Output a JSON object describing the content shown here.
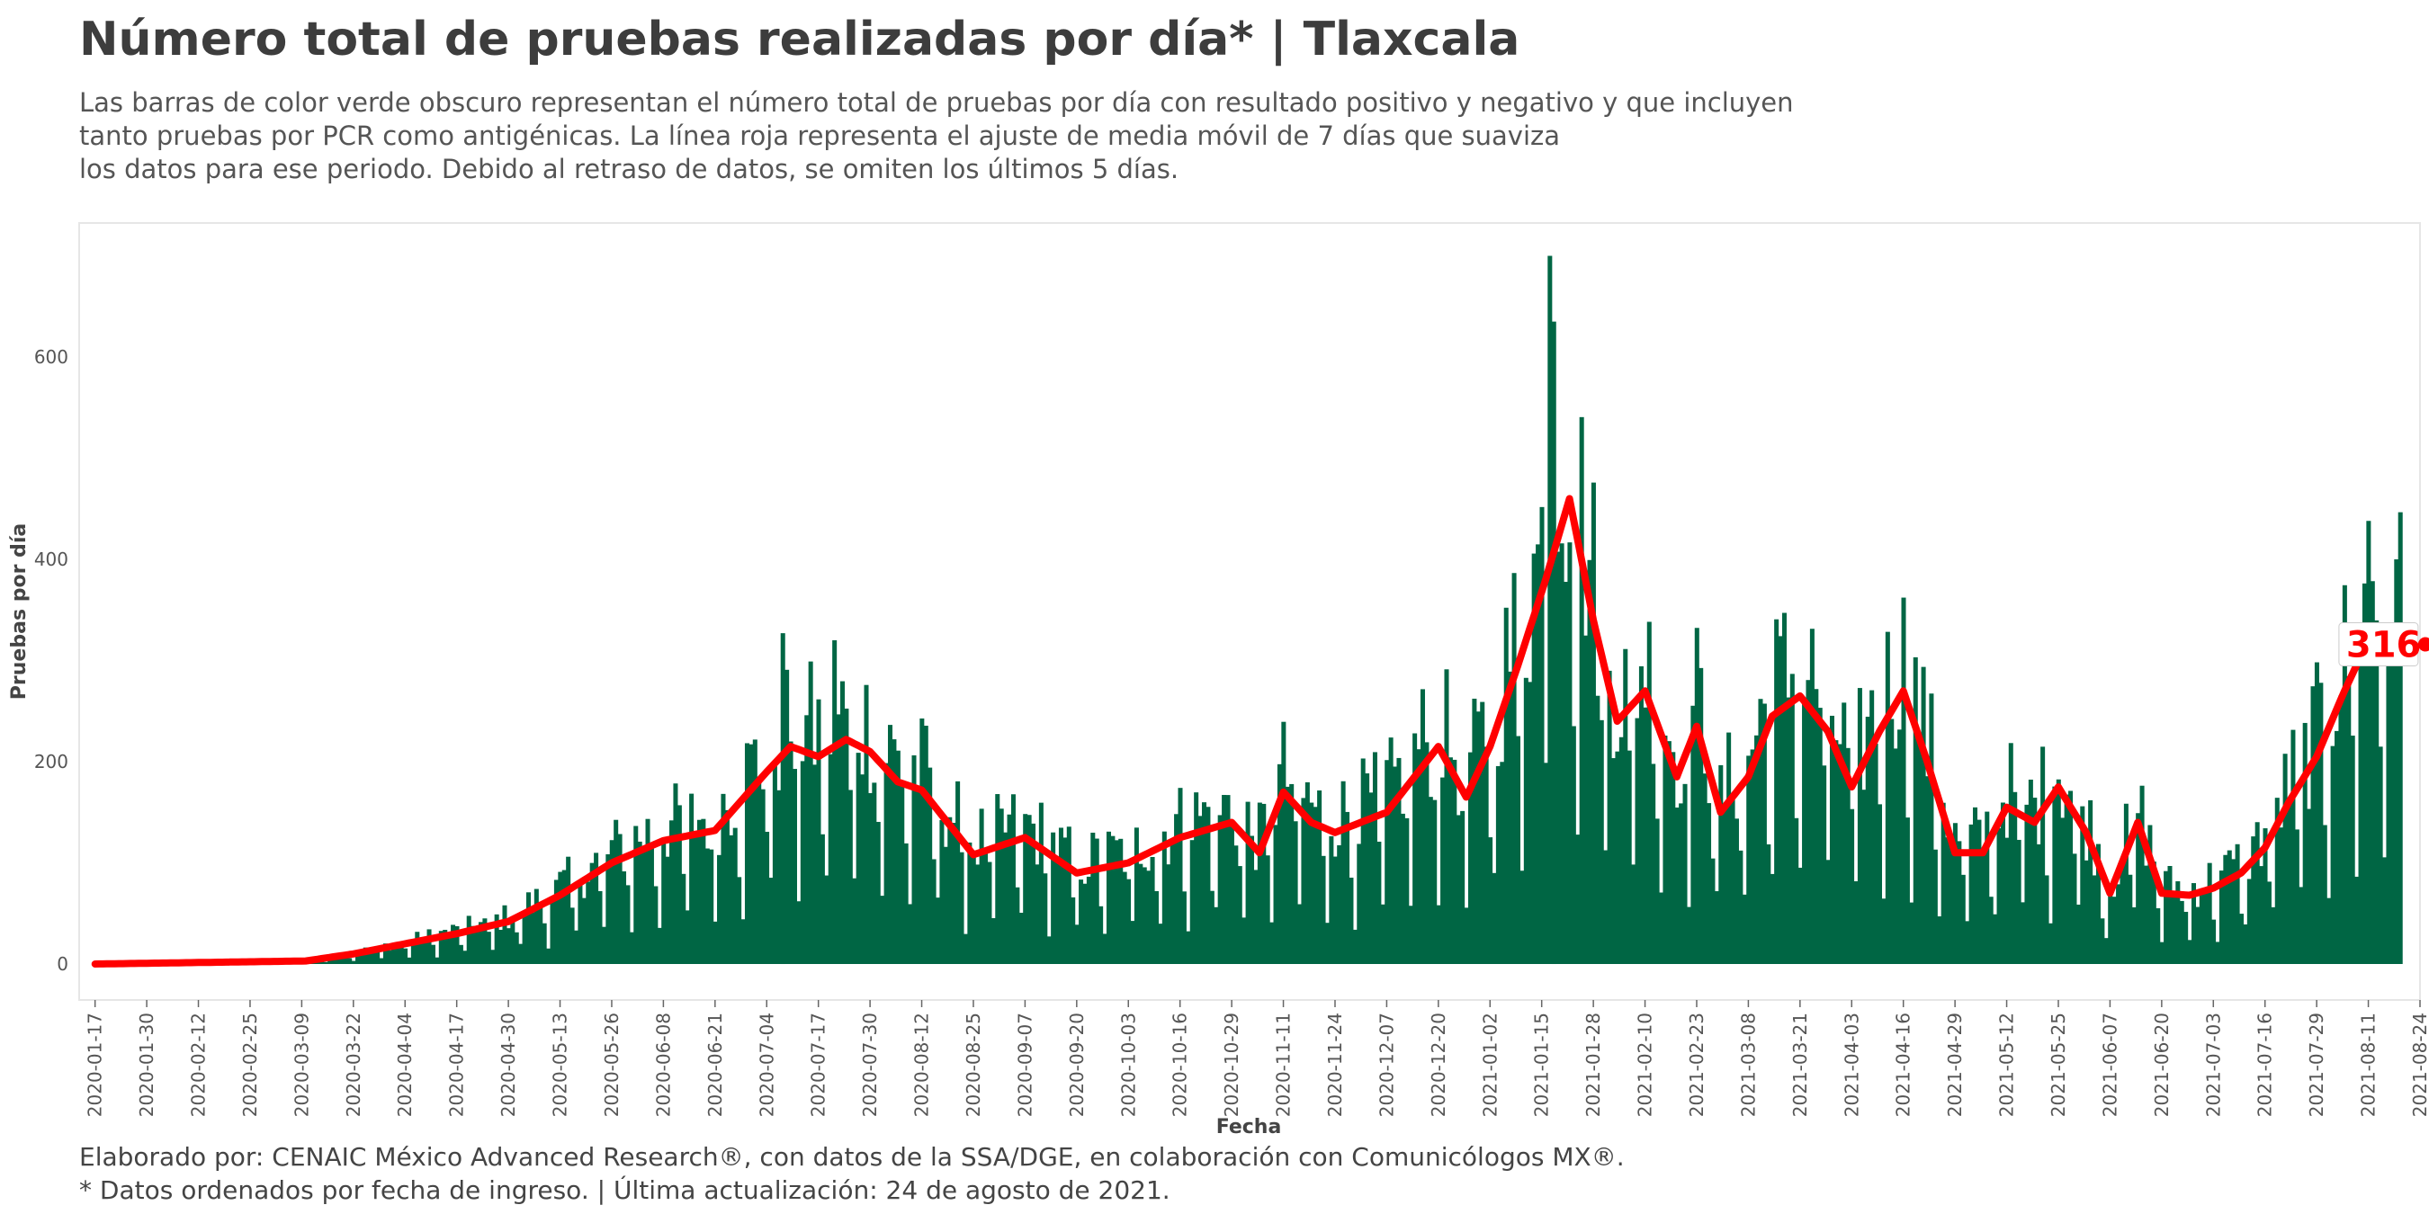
{
  "header": {
    "title": "Número total de pruebas realizadas por día* | Tlaxcala",
    "subtitle_lines": [
      "Las barras de color verde obscuro representan el número total de pruebas por día con resultado positivo y negativo y que incluyen",
      "tanto pruebas por PCR como antigénicas. La línea roja representa el ajuste de media móvil de 7 días que suaviza",
      "los datos para ese periodo. Debido al retraso de datos, se omiten los últimos 5 días."
    ]
  },
  "footer": {
    "lines": [
      "Elaborado por: CENAIC México Advanced Research®, con datos de la SSA/DGE, en colaboración con Comunicólogos MX®.",
      "* Datos ordenados por fecha de ingreso. | Última actualización: 24 de agosto de 2021."
    ]
  },
  "colors": {
    "bars": "#006644",
    "line": "#ff0000",
    "panel_border": "#e6e6e6"
  },
  "chart_data": {
    "type": "bar",
    "xlabel": "Fecha",
    "ylabel": "Pruebas por día",
    "x_start": "2020-01-17",
    "x_end": "2021-08-19",
    "x_axis_limits": [
      "2020-01-13",
      "2021-08-24"
    ],
    "xlim": [
      "2020-01-13",
      "2021-08-24"
    ],
    "ylim": [
      0,
      720
    ],
    "y_ticks": [
      0,
      200,
      400,
      600
    ],
    "x_ticks": [
      "2020-01-17",
      "2020-01-30",
      "2020-02-12",
      "2020-02-25",
      "2020-03-09",
      "2020-03-22",
      "2020-04-04",
      "2020-04-17",
      "2020-04-30",
      "2020-05-13",
      "2020-05-26",
      "2020-06-08",
      "2020-06-21",
      "2020-07-04",
      "2020-07-17",
      "2020-07-30",
      "2020-08-12",
      "2020-08-25",
      "2020-09-07",
      "2020-09-20",
      "2020-10-03",
      "2020-10-16",
      "2020-10-29",
      "2020-11-11",
      "2020-11-24",
      "2020-12-07",
      "2020-12-20",
      "2021-01-02",
      "2021-01-15",
      "2021-01-28",
      "2021-02-10",
      "2021-02-23",
      "2021-03-08",
      "2021-03-21",
      "2021-04-03",
      "2021-04-16",
      "2021-04-29",
      "2021-05-12",
      "2021-05-25",
      "2021-06-07",
      "2021-06-20",
      "2021-07-03",
      "2021-07-16",
      "2021-07-29",
      "2021-08-11",
      "2021-08-24"
    ],
    "moving_average_anchors": [
      [
        "2020-01-17",
        0
      ],
      [
        "2020-03-10",
        3
      ],
      [
        "2020-03-22",
        10
      ],
      [
        "2020-04-04",
        20
      ],
      [
        "2020-04-17",
        30
      ],
      [
        "2020-04-30",
        42
      ],
      [
        "2020-05-13",
        68
      ],
      [
        "2020-05-26",
        100
      ],
      [
        "2020-06-08",
        122
      ],
      [
        "2020-06-21",
        132
      ],
      [
        "2020-07-04",
        190
      ],
      [
        "2020-07-10",
        215
      ],
      [
        "2020-07-17",
        205
      ],
      [
        "2020-07-24",
        222
      ],
      [
        "2020-07-30",
        210
      ],
      [
        "2020-08-06",
        180
      ],
      [
        "2020-08-12",
        172
      ],
      [
        "2020-08-25",
        108
      ],
      [
        "2020-09-07",
        125
      ],
      [
        "2020-09-20",
        90
      ],
      [
        "2020-10-03",
        100
      ],
      [
        "2020-10-16",
        125
      ],
      [
        "2020-10-29",
        140
      ],
      [
        "2020-11-05",
        110
      ],
      [
        "2020-11-11",
        170
      ],
      [
        "2020-11-18",
        140
      ],
      [
        "2020-11-24",
        130
      ],
      [
        "2020-12-07",
        150
      ],
      [
        "2020-12-20",
        215
      ],
      [
        "2020-12-27",
        165
      ],
      [
        "2021-01-02",
        215
      ],
      [
        "2021-01-09",
        295
      ],
      [
        "2021-01-16",
        380
      ],
      [
        "2021-01-22",
        460
      ],
      [
        "2021-01-28",
        340
      ],
      [
        "2021-02-03",
        240
      ],
      [
        "2021-02-10",
        270
      ],
      [
        "2021-02-18",
        185
      ],
      [
        "2021-02-23",
        235
      ],
      [
        "2021-03-01",
        150
      ],
      [
        "2021-03-08",
        185
      ],
      [
        "2021-03-14",
        245
      ],
      [
        "2021-03-21",
        265
      ],
      [
        "2021-03-28",
        230
      ],
      [
        "2021-04-03",
        175
      ],
      [
        "2021-04-10",
        230
      ],
      [
        "2021-04-16",
        270
      ],
      [
        "2021-04-22",
        200
      ],
      [
        "2021-04-29",
        110
      ],
      [
        "2021-05-06",
        110
      ],
      [
        "2021-05-12",
        155
      ],
      [
        "2021-05-19",
        140
      ],
      [
        "2021-05-25",
        175
      ],
      [
        "2021-06-01",
        130
      ],
      [
        "2021-06-07",
        70
      ],
      [
        "2021-06-14",
        140
      ],
      [
        "2021-06-20",
        70
      ],
      [
        "2021-06-27",
        68
      ],
      [
        "2021-07-03",
        75
      ],
      [
        "2021-07-10",
        90
      ],
      [
        "2021-07-16",
        115
      ],
      [
        "2021-07-22",
        160
      ],
      [
        "2021-07-29",
        205
      ],
      [
        "2021-08-05",
        270
      ],
      [
        "2021-08-11",
        320
      ],
      [
        "2021-08-19",
        316
      ]
    ],
    "bar_amplitude": 0.3,
    "bar_peaks": [
      [
        "2021-01-17",
        700
      ],
      [
        "2021-01-18",
        635
      ],
      [
        "2021-08-11",
        438
      ],
      [
        "2021-08-18",
        400
      ],
      [
        "2020-07-08",
        327
      ],
      [
        "2020-07-21",
        320
      ]
    ],
    "end_label": {
      "date": "2021-08-19",
      "value": "316"
    }
  }
}
